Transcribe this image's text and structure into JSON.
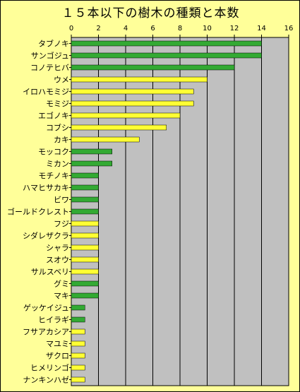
{
  "chart_data": {
    "type": "bar",
    "orientation": "horizontal",
    "title": "１５本以下の樹木の種類と本数",
    "xlim": [
      0,
      16
    ],
    "xticks": [
      0,
      2,
      4,
      6,
      8,
      10,
      12,
      14,
      16
    ],
    "grid": true,
    "legend": "none",
    "colors": {
      "green": "#33aa33",
      "yellow": "#ffff33",
      "plot_bg": "#c0c0c0",
      "chart_bg": "#ffff99"
    },
    "categories": [
      "タブノキ",
      "サンゴジュ",
      "コノテヒバ",
      "ウメ",
      "イロハモミジ",
      "モミジ",
      "エゴノキ",
      "コブシ",
      "カキ",
      "モッコク",
      "ミカン",
      "モチノキ",
      "ハマヒサカキ",
      "ビワ",
      "ゴールドクレスト",
      "フジ",
      "シダレザクラ",
      "シャラ",
      "スオウ",
      "サルスベリ",
      "グミ",
      "マキ",
      "ゲッケイジュ",
      "ヒイラギ",
      "フサアカシア",
      "マユミ",
      "ザクロ",
      "ヒメリンゴ",
      "ナンキンハゼ"
    ],
    "values": [
      14,
      14,
      12,
      10,
      9,
      9,
      8,
      7,
      5,
      3,
      3,
      2,
      2,
      2,
      2,
      2,
      2,
      2,
      2,
      2,
      2,
      2,
      1,
      1,
      1,
      1,
      1,
      1,
      1
    ],
    "bar_colors": [
      "green",
      "green",
      "green",
      "yellow",
      "yellow",
      "yellow",
      "yellow",
      "yellow",
      "yellow",
      "green",
      "green",
      "green",
      "green",
      "green",
      "green",
      "yellow",
      "yellow",
      "yellow",
      "yellow",
      "yellow",
      "green",
      "green",
      "green",
      "green",
      "yellow",
      "yellow",
      "yellow",
      "yellow",
      "yellow"
    ]
  }
}
